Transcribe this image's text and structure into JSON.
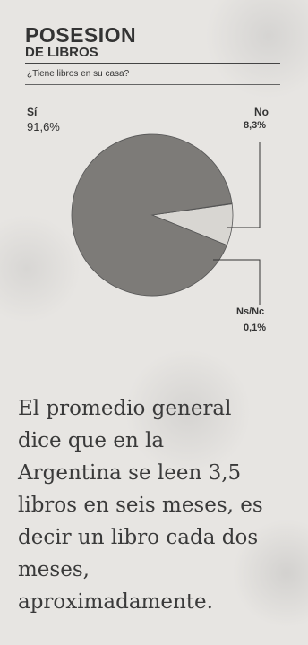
{
  "title": "POSESION",
  "subtitle": "DE LIBROS",
  "question": "¿Tiene libros en su casa?",
  "chart_data": {
    "type": "pie",
    "slices": [
      {
        "label": "Sí",
        "value": 91.6,
        "value_label": "91,6%",
        "color": "#7d7b78"
      },
      {
        "label": "No",
        "value": 8.3,
        "value_label": "8,3%",
        "color": "#d8d6d2"
      },
      {
        "label": "Ns/Nc",
        "value": 0.1,
        "value_label": "0,1%",
        "color": "#f0efec"
      }
    ]
  },
  "paragraph": [
    "El promedio general",
    "dice que en la",
    "Argentina se leen 3,5",
    "libros en seis meses, es",
    "decir un libro cada dos",
    "meses,",
    "aproximadamente."
  ]
}
